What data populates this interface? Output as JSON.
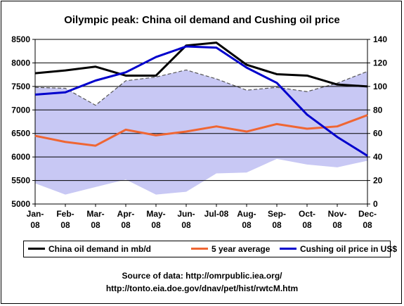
{
  "chart_data": {
    "type": "line",
    "title": "Oilympic peak: China oil demand and Cushing oil price",
    "categories": [
      "Jan-08",
      "Feb-08",
      "Mar-08",
      "Apr-08",
      "May-08",
      "Jun-08",
      "Jul-08",
      "Aug-08",
      "Sep-08",
      "Oct-08",
      "Nov-08",
      "Dec-08"
    ],
    "left_axis": {
      "min": 5000,
      "max": 8500,
      "ticks": [
        5000,
        5500,
        6000,
        6500,
        7000,
        7500,
        8000,
        8500
      ]
    },
    "right_axis": {
      "min": 0,
      "max": 140,
      "ticks": [
        0,
        20,
        40,
        60,
        80,
        100,
        120,
        140
      ]
    },
    "grid": true,
    "legend_position": "bottom",
    "series": [
      {
        "name": "China oil demand in mb/d",
        "axis": "left",
        "color": "#000000",
        "values": [
          7780,
          7840,
          7920,
          7730,
          7730,
          8370,
          8430,
          7960,
          7760,
          7730,
          7540,
          7500
        ]
      },
      {
        "name": "5 year average",
        "axis": "left",
        "color": "#ef6633",
        "values": [
          6450,
          6320,
          6240,
          6580,
          6460,
          6540,
          6650,
          6540,
          6700,
          6600,
          6650,
          6890
        ]
      },
      {
        "name": "Cushing oil price in US$",
        "axis": "right",
        "color": "#0000cc",
        "values": [
          93,
          95,
          105,
          112,
          125,
          134,
          133,
          116,
          103,
          76,
          57,
          41
        ]
      }
    ],
    "band": {
      "axis": "left",
      "fill": "#c8c8f4",
      "upper": [
        7480,
        7460,
        7100,
        7620,
        7700,
        7850,
        7660,
        7420,
        7480,
        7390,
        7570,
        7820
      ],
      "lower": [
        5440,
        5200,
        5360,
        5520,
        5200,
        5260,
        5650,
        5670,
        5960,
        5840,
        5780,
        5920
      ]
    }
  },
  "source": {
    "line1": "Source of data:  http://omrpublic.iea.org/",
    "line2": "http://tonto.eia.doe.gov/dnav/pet/hist/rwtcM.htm"
  }
}
